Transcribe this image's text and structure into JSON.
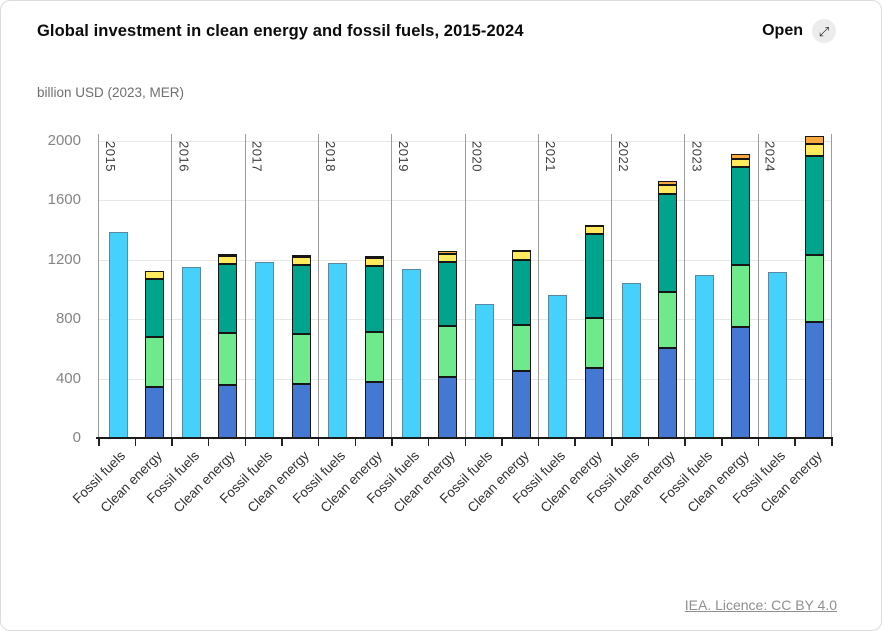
{
  "card": {
    "title": "Global investment in clean energy and fossil fuels, 2015-2024",
    "open_button": {
      "label": "Open",
      "icon_glyph": "⤢"
    },
    "subtitle": "billion USD (2023, MER)",
    "footer_link": "IEA. Licence: CC BY 4.0"
  },
  "chart_data": {
    "type": "bar",
    "stacked": true,
    "title": "Global investment in clean energy and fossil fuels, 2015-2024",
    "ylabel": "billion USD (2023, MER)",
    "y_ticks": [
      0,
      400,
      800,
      1200,
      1600,
      2000
    ],
    "ylim": [
      0,
      2045
    ],
    "grid": true,
    "legend": "none",
    "categories": [
      "2015",
      "2016",
      "2017",
      "2018",
      "2019",
      "2020",
      "2021",
      "2022",
      "2023",
      "2024"
    ],
    "bar_pair_labels": [
      "Fossil fuels",
      "Clean energy"
    ],
    "fossil_fuels": {
      "label": "Fossil fuels",
      "color": "#45D1FC",
      "border_color": "#5A87A2",
      "values": [
        1385,
        1150,
        1185,
        1175,
        1135,
        900,
        965,
        1045,
        1095,
        1115
      ]
    },
    "clean_energy": {
      "label": "Clean energy",
      "totals": [
        1125,
        1235,
        1230,
        1225,
        1260,
        1265,
        1435,
        1730,
        1910,
        2030
      ],
      "segments": [
        {
          "name": "segment-1-blue",
          "color": "#4478D2",
          "values": [
            345,
            355,
            360,
            375,
            410,
            450,
            470,
            605,
            745,
            780
          ]
        },
        {
          "name": "segment-2-light-green",
          "color": "#6EEA8C",
          "values": [
            335,
            350,
            340,
            335,
            345,
            310,
            335,
            375,
            420,
            450
          ]
        },
        {
          "name": "segment-3-teal",
          "color": "#00A48C",
          "values": [
            390,
            465,
            465,
            450,
            430,
            440,
            565,
            660,
            655,
            670
          ]
        },
        {
          "name": "segment-4-yellow",
          "color": "#FFE95C",
          "values": [
            55,
            55,
            55,
            50,
            55,
            55,
            55,
            60,
            60,
            75
          ]
        },
        {
          "name": "segment-5-orange",
          "color": "#F5A93F",
          "values": [
            0,
            10,
            10,
            15,
            20,
            10,
            10,
            30,
            30,
            55
          ]
        }
      ]
    }
  }
}
